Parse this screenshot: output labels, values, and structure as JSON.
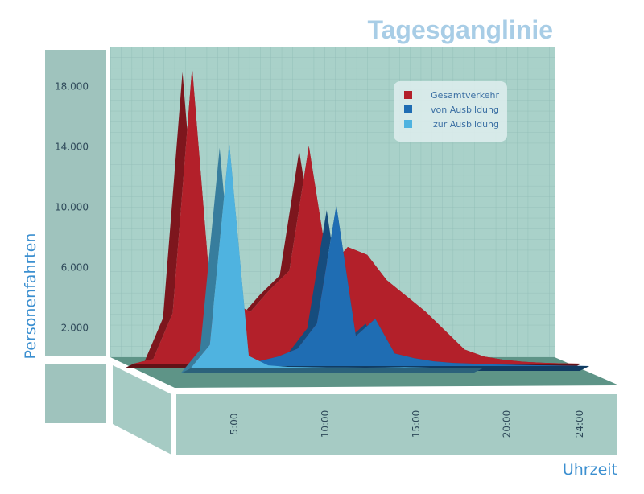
{
  "chart_data": {
    "type": "area",
    "title": "Tagesganglinie",
    "xlabel": "Uhrzeit",
    "ylabel": "Personenfahrten",
    "yticks": [
      "18.000",
      "14.000",
      "10.000",
      "6.000",
      "2.000"
    ],
    "ytick_values": [
      18000,
      14000,
      10000,
      6000,
      2000
    ],
    "xticks": [
      "5:00",
      "10:00",
      "15:00",
      "20:00",
      "24:00"
    ],
    "xtick_values": [
      5,
      10,
      15,
      20,
      24
    ],
    "xlim": [
      0,
      24
    ],
    "ylim": [
      0,
      20000
    ],
    "grid": true,
    "legend_position": "top-right",
    "series": [
      {
        "name": "Gesamtverkehr",
        "color": "#b3202a",
        "x": [
          1,
          2,
          3,
          4,
          5,
          6,
          7,
          8,
          9,
          10,
          11,
          12,
          13,
          14,
          15,
          16,
          17,
          18,
          19,
          20,
          21,
          22,
          23,
          24
        ],
        "values": [
          0,
          300,
          3200,
          18800,
          3600,
          3900,
          3300,
          4700,
          5900,
          13800,
          6000,
          7400,
          6900,
          5300,
          4300,
          3300,
          2100,
          900,
          450,
          250,
          120,
          60,
          20,
          0
        ]
      },
      {
        "name": "von Ausbildung",
        "color": "#1f6db3",
        "x": [
          4,
          5,
          6,
          7,
          8,
          9,
          10,
          11,
          12,
          13,
          14,
          15,
          16,
          17,
          18,
          19,
          20,
          21,
          22,
          23,
          24
        ],
        "values": [
          0,
          200,
          300,
          300,
          600,
          1100,
          2700,
          10200,
          1900,
          3000,
          800,
          500,
          300,
          200,
          150,
          100,
          80,
          60,
          40,
          20,
          0
        ]
      },
      {
        "name": "zur Ausbildung",
        "color": "#4fb3e0",
        "x": [
          3,
          4,
          5,
          6,
          7,
          8,
          9,
          10,
          11,
          12,
          13,
          14,
          15,
          16,
          17,
          18
        ],
        "values": [
          0,
          1500,
          14300,
          800,
          200,
          100,
          80,
          60,
          60,
          50,
          60,
          80,
          60,
          40,
          20,
          0
        ]
      }
    ]
  }
}
